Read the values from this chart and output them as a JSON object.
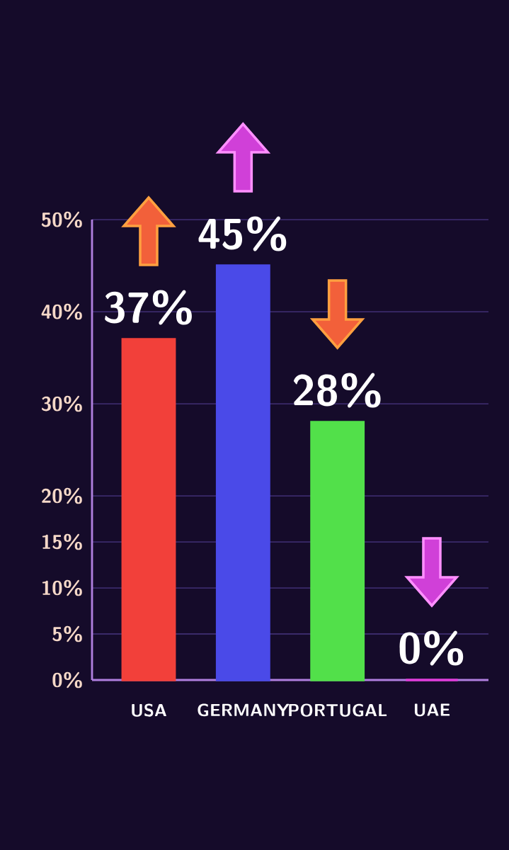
{
  "chart_data": {
    "type": "bar",
    "categories": [
      "USA",
      "GERMANY",
      "PORTUGAL",
      "UAE"
    ],
    "values": [
      37,
      45,
      28,
      0
    ],
    "value_labels": [
      "37%",
      "45%",
      "28%",
      "0%"
    ],
    "colors": [
      "#f2403a",
      "#4a4ae8",
      "#52e04a",
      "#e03ad8"
    ],
    "ylim": [
      0,
      50
    ],
    "yticks": [
      {
        "value": 0,
        "label": "0%"
      },
      {
        "value": 5,
        "label": "5%"
      },
      {
        "value": 10,
        "label": "10%"
      },
      {
        "value": 15,
        "label": "15%"
      },
      {
        "value": 20,
        "label": "20%"
      },
      {
        "value": 30,
        "label": "30%"
      },
      {
        "value": 40,
        "label": "40%"
      },
      {
        "value": 50,
        "label": "50%"
      }
    ],
    "grid": "y"
  }
}
